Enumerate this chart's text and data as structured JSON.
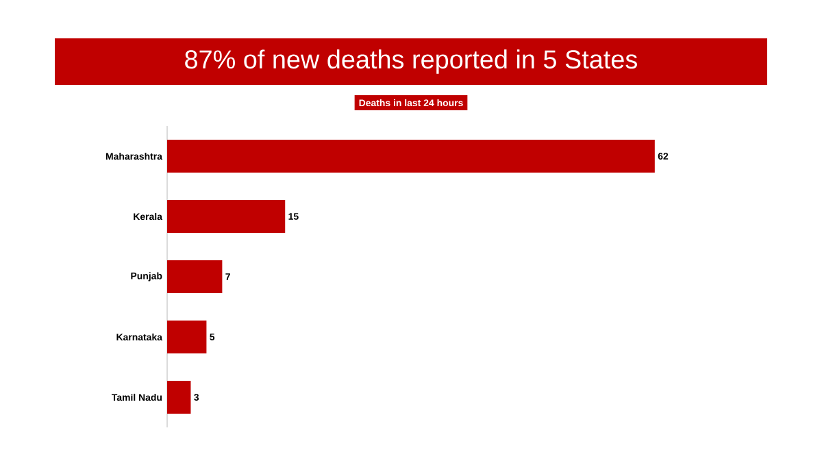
{
  "chart_data": {
    "type": "bar",
    "orientation": "horizontal",
    "title": "87% of new deaths reported in 5 States",
    "subtitle": "Deaths in last 24 hours",
    "categories": [
      "Maharashtra",
      "Kerala",
      "Punjab",
      "Karnataka",
      "Tamil Nadu"
    ],
    "values": [
      62,
      15,
      7,
      5,
      3
    ],
    "color": "#c00000",
    "data_labels": true
  }
}
